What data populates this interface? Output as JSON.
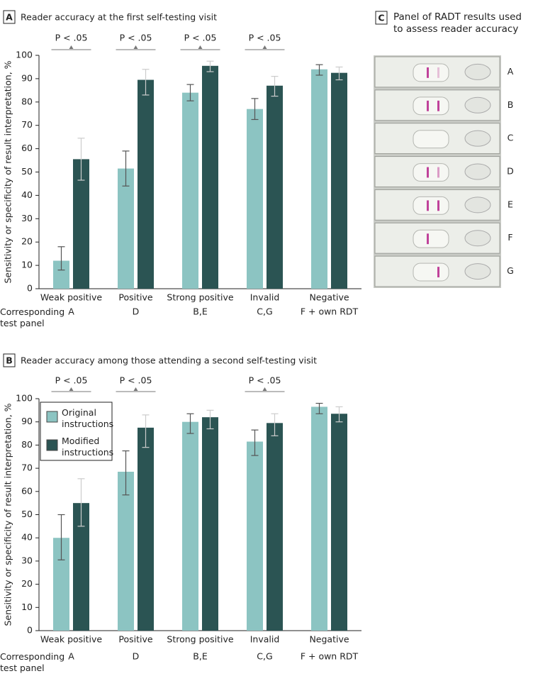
{
  "chart_data": [
    {
      "type": "bar",
      "panel": "A",
      "title": "Reader accuracy at the first self-testing visit",
      "ylabel": "Sensitivity or specificity of result interpretation, %",
      "categories": [
        "Weak positive",
        "Positive",
        "Strong positive",
        "Invalid",
        "Negative"
      ],
      "row_label": "Corresponding test panel",
      "row_values": [
        "A",
        "D",
        "B,E",
        "C,G",
        "F + own RDT"
      ],
      "significance": [
        "P < .05",
        "P < .05",
        "P < .05",
        "P < .05",
        null
      ],
      "series": [
        {
          "name": "Original instructions",
          "color": "#8cc4c2",
          "values": [
            12,
            51.5,
            84,
            77,
            94
          ],
          "lower": [
            8,
            44,
            80.5,
            72.5,
            91.5
          ],
          "upper": [
            18,
            59,
            87.5,
            81.5,
            96
          ]
        },
        {
          "name": "Modified instructions",
          "color": "#2b5453",
          "values": [
            55.5,
            89.5,
            95.5,
            87,
            92.5
          ],
          "lower": [
            46.5,
            83,
            93,
            82.5,
            89.5
          ],
          "upper": [
            64.5,
            94,
            97.5,
            91,
            95
          ]
        }
      ],
      "ylim": [
        0,
        100
      ],
      "yticks": [
        0,
        10,
        20,
        30,
        40,
        50,
        60,
        70,
        80,
        90,
        100
      ],
      "legend": null
    },
    {
      "type": "bar",
      "panel": "B",
      "title": "Reader accuracy among those attending a second self-testing visit",
      "ylabel": "Sensitivity or specificity of result interpretation, %",
      "categories": [
        "Weak positive",
        "Positive",
        "Strong positive",
        "Invalid",
        "Negative"
      ],
      "row_label": "Corresponding test panel",
      "row_values": [
        "A",
        "D",
        "B,E",
        "C,G",
        "F + own RDT"
      ],
      "significance": [
        "P < .05",
        "P < .05",
        null,
        "P < .05",
        null
      ],
      "series": [
        {
          "name": "Original instructions",
          "color": "#8cc4c2",
          "values": [
            40,
            68.5,
            90,
            81.5,
            96.5
          ],
          "lower": [
            30.5,
            58.5,
            85,
            75.5,
            93.5
          ],
          "upper": [
            50,
            77.5,
            93.5,
            86.5,
            98
          ]
        },
        {
          "name": "Modified instructions",
          "color": "#2b5453",
          "values": [
            55,
            87.5,
            92,
            89.5,
            93.5
          ],
          "lower": [
            45,
            79,
            87,
            84,
            90
          ],
          "upper": [
            65.5,
            93,
            95,
            93.5,
            96.5
          ]
        }
      ],
      "ylim": [
        0,
        100
      ],
      "yticks": [
        0,
        10,
        20,
        30,
        40,
        50,
        60,
        70,
        80,
        90,
        100
      ],
      "legend": "upper left"
    }
  ],
  "image_panel": {
    "panel": "C",
    "title": "Panel of RADT results used to assess reader accuracy",
    "labels": [
      "A",
      "B",
      "C",
      "D",
      "E",
      "F",
      "G"
    ]
  }
}
